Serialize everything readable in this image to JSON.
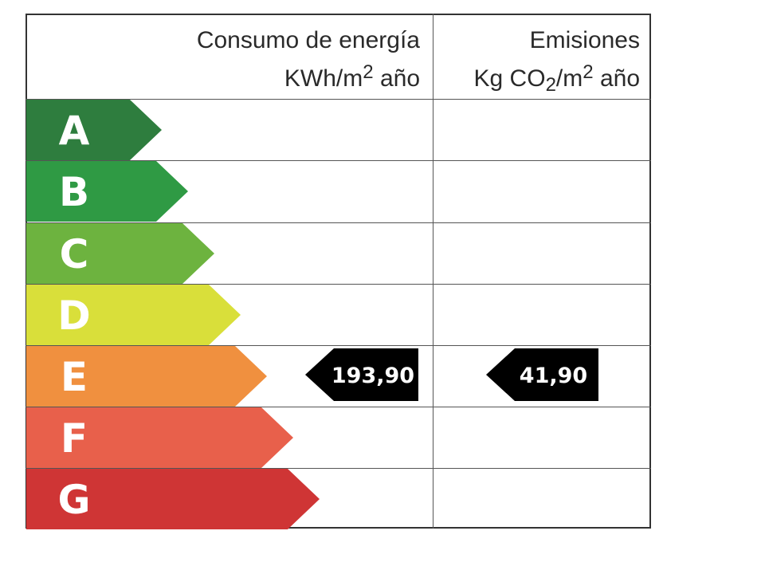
{
  "header": {
    "energy_title": "Consumo de energía",
    "energy_unit_prefix": "KWh/m",
    "energy_unit_sup": "2",
    "energy_unit_suffix": " año",
    "emissions_title": "Emisiones",
    "emissions_unit_prefix": "Kg CO",
    "emissions_unit_sub": "2",
    "emissions_unit_mid": "/m",
    "emissions_unit_sup": "2",
    "emissions_unit_suffix": " año"
  },
  "ratings": [
    {
      "letter": "A",
      "color": "#2e7d3e"
    },
    {
      "letter": "B",
      "color": "#2f9a44"
    },
    {
      "letter": "C",
      "color": "#6db33f"
    },
    {
      "letter": "D",
      "color": "#d9df3a"
    },
    {
      "letter": "E",
      "color": "#f0903f"
    },
    {
      "letter": "F",
      "color": "#e8604b"
    },
    {
      "letter": "G",
      "color": "#cf3535"
    }
  ],
  "current_rating": "E",
  "energy_value": "193,90",
  "emissions_value": "41,90",
  "tag_color": "#000000"
}
